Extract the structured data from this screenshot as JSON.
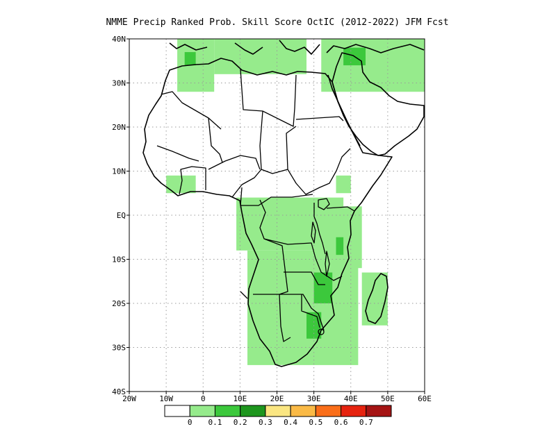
{
  "title": "NMME Precip Ranked Prob. Skill Score OctIC (2012-2022) JFM Fcst",
  "colors": {
    "background": "#ffffff",
    "land": "#ffffff",
    "grid": "#9a9a9a",
    "outline": "#000000"
  },
  "map": {
    "lon_range": [
      -20,
      60
    ],
    "lat_range": [
      -40,
      40
    ],
    "lat_ticks": [
      {
        "value": 40,
        "label": "40N"
      },
      {
        "value": 30,
        "label": "30N"
      },
      {
        "value": 20,
        "label": "20N"
      },
      {
        "value": 10,
        "label": "10N"
      },
      {
        "value": 0,
        "label": "EQ"
      },
      {
        "value": -10,
        "label": "10S"
      },
      {
        "value": -20,
        "label": "20S"
      },
      {
        "value": -30,
        "label": "30S"
      },
      {
        "value": -40,
        "label": "40S"
      }
    ],
    "lon_ticks": [
      {
        "value": -20,
        "label": "20W"
      },
      {
        "value": -10,
        "label": "10W"
      },
      {
        "value": 0,
        "label": "0"
      },
      {
        "value": 10,
        "label": "10E"
      },
      {
        "value": 20,
        "label": "20E"
      },
      {
        "value": 30,
        "label": "30E"
      },
      {
        "value": 40,
        "label": "40E"
      },
      {
        "value": 50,
        "label": "50E"
      },
      {
        "value": 60,
        "label": "60E"
      }
    ],
    "gridlines": true
  },
  "legend": {
    "bins": [
      {
        "color": "#ffffff"
      },
      {
        "color": "#96eb8c"
      },
      {
        "color": "#3cc83c"
      },
      {
        "color": "#1e961e"
      },
      {
        "color": "#fae682"
      },
      {
        "color": "#faba46"
      },
      {
        "color": "#fa6e19"
      },
      {
        "color": "#e6230f"
      },
      {
        "color": "#a51414"
      }
    ],
    "labels": [
      "0",
      "0.1",
      "0.2",
      "0.3",
      "0.4",
      "0.5",
      "0.6",
      "0.7"
    ]
  },
  "skill_regions": [
    {
      "level": 1,
      "area": "Morocco / northwest Africa",
      "lon": [
        -7,
        3
      ],
      "lat": [
        28,
        40
      ]
    },
    {
      "level": 1,
      "area": "Mediterranean coast Tunisia-Libya",
      "lon": [
        3,
        28
      ],
      "lat": [
        32,
        40
      ]
    },
    {
      "level": 1,
      "area": "Middle East",
      "lon": [
        32,
        60
      ],
      "lat": [
        28,
        40
      ]
    },
    {
      "level": 1,
      "area": "Guinea coast",
      "lon": [
        -10,
        -2
      ],
      "lat": [
        5,
        9
      ]
    },
    {
      "level": 1,
      "area": "Ethiopian highlands",
      "lon": [
        36,
        40
      ],
      "lat": [
        5,
        9
      ]
    },
    {
      "level": 1,
      "area": "Central Africa / Congo basin",
      "lon": [
        9,
        38
      ],
      "lat": [
        -8,
        4
      ]
    },
    {
      "level": 1,
      "area": "East Africa coast / Tanzania",
      "lon": [
        30,
        43
      ],
      "lat": [
        -12,
        2
      ]
    },
    {
      "level": 1,
      "area": "Southern Africa",
      "lon": [
        12,
        42
      ],
      "lat": [
        -34,
        -8
      ]
    },
    {
      "level": 1,
      "area": "Madagascar",
      "lon": [
        43,
        50
      ],
      "lat": [
        -25,
        -13
      ]
    },
    {
      "level": 2,
      "area": "Mozambique / Zimbabwe",
      "lon": [
        30,
        35
      ],
      "lat": [
        -20,
        -13
      ]
    },
    {
      "level": 2,
      "area": "Tanzania interior",
      "lon": [
        36,
        38
      ],
      "lat": [
        -9,
        -5
      ]
    },
    {
      "level": 2,
      "area": "South Africa east",
      "lon": [
        28,
        32
      ],
      "lat": [
        -28,
        -22
      ]
    },
    {
      "level": 2,
      "area": "Morocco coast",
      "lon": [
        -5,
        -2
      ],
      "lat": [
        34,
        37
      ]
    },
    {
      "level": 2,
      "area": "Levant",
      "lon": [
        38,
        44
      ],
      "lat": [
        34,
        38
      ]
    }
  ]
}
